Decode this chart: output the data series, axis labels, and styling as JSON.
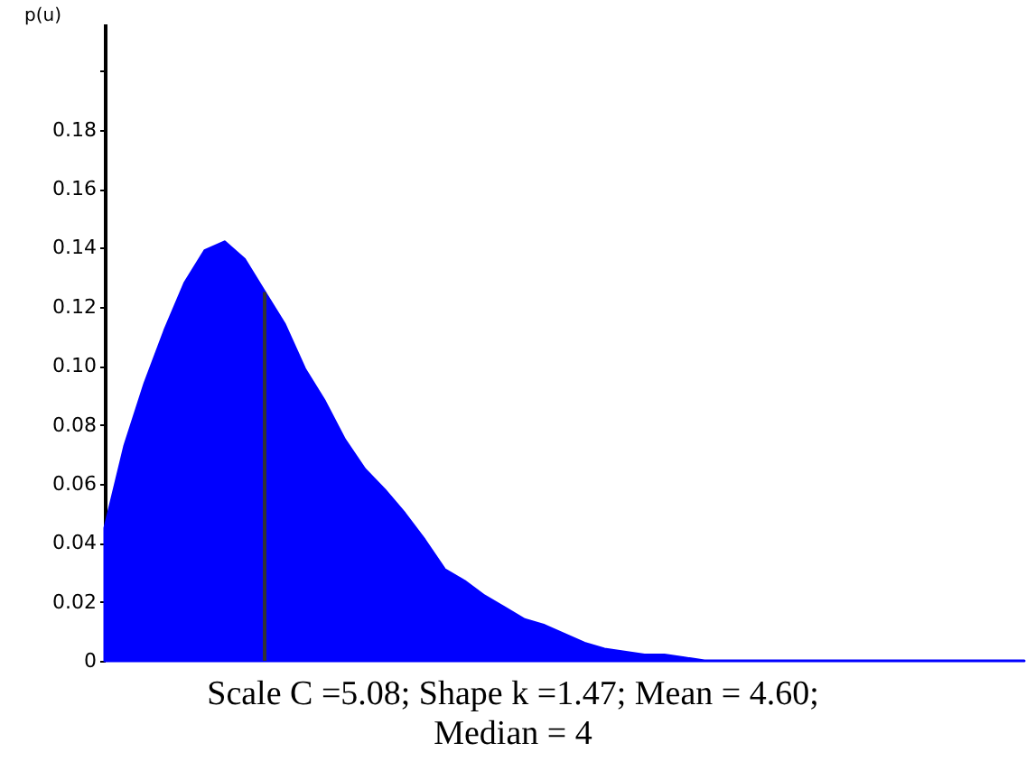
{
  "chart_data": {
    "type": "area",
    "ylabel": "p(u)",
    "categories": [
      null,
      null,
      null,
      null,
      null,
      null,
      null,
      null,
      null,
      null,
      null,
      null,
      null,
      null,
      null,
      null,
      null,
      null,
      null,
      null,
      null,
      null,
      null,
      null,
      null,
      null,
      null,
      null,
      null,
      null,
      null,
      null,
      null,
      null,
      null,
      null,
      null,
      null,
      null,
      null,
      null,
      null,
      null,
      null,
      null,
      null,
      null
    ],
    "series": [
      {
        "color": "#0000ff",
        "values": [
          0.045,
          0.073,
          0.094,
          0.112,
          0.128,
          0.139,
          0.142,
          0.136,
          0.125,
          0.114,
          0.099,
          0.088,
          0.075,
          0.065,
          0.058,
          0.05,
          0.041,
          0.031,
          0.027,
          0.022,
          0.018,
          0.014,
          0.012,
          0.009,
          0.006,
          0.004,
          0.003,
          0.002,
          0.002,
          0.001,
          0,
          0,
          0,
          0,
          0,
          0,
          0,
          0,
          0,
          0,
          0,
          0,
          0,
          0,
          0,
          0,
          0
        ]
      },
      {
        "type": "bar",
        "color": "#333333",
        "values": [
          null,
          null,
          null,
          null,
          null,
          null,
          null,
          null,
          0.125,
          null,
          null,
          null,
          null,
          null,
          null,
          null,
          null,
          null,
          null,
          null,
          null,
          null,
          null,
          null,
          null,
          null,
          null,
          null,
          null,
          null,
          null,
          null,
          null,
          null,
          null,
          null,
          null,
          null,
          null,
          null,
          null,
          null,
          null,
          null,
          null,
          null,
          null
        ]
      }
    ],
    "ylim": [
      0,
      0.216
    ],
    "yticks": [
      0,
      {
        "value": 0.02,
        "label": "0.02"
      },
      {
        "value": 0.04,
        "label": "0.04"
      },
      {
        "value": 0.06,
        "label": "0.06"
      },
      {
        "value": 0.08,
        "label": "0.08"
      },
      {
        "value": 0.1,
        "label": "0.10"
      },
      {
        "value": 0.12,
        "label": "0.12"
      },
      {
        "value": 0.14,
        "label": "0.14"
      },
      {
        "value": 0.16,
        "label": "0.16"
      },
      {
        "value": 0.18,
        "label": "0.18"
      },
      {
        "value": 0.2,
        "label": null
      }
    ],
    "tick_labels": "y",
    "annotations": [
      "Scale C =5.08; Shape k =1.47; Mean = 4.60; Median = 4"
    ]
  }
}
